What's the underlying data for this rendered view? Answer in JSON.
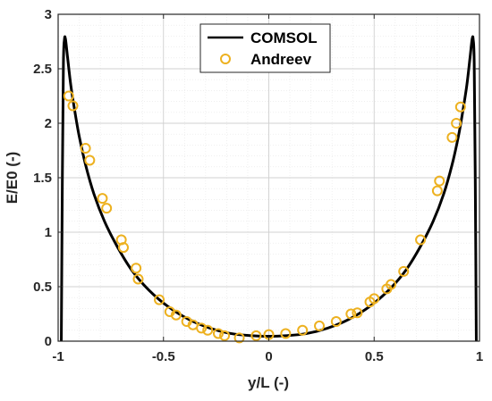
{
  "chart_data": {
    "type": "line",
    "title": "",
    "xlabel": "y/L (-)",
    "ylabel": "E/E0 (-)",
    "xlim": [
      -1,
      1
    ],
    "ylim": [
      0,
      3
    ],
    "x_ticks": [
      -1,
      -0.5,
      0,
      0.5,
      1
    ],
    "x_tick_labels": [
      "-1",
      "-0.5",
      "0",
      "0.5",
      "1"
    ],
    "y_ticks": [
      0,
      0.5,
      1,
      1.5,
      2,
      2.5,
      3
    ],
    "y_tick_labels": [
      "0",
      "0.5",
      "1",
      "1.5",
      "2",
      "2.5",
      "3"
    ],
    "x_minor_step": 0.1,
    "y_minor_step": 0.1,
    "grid": true,
    "legend_position": "top-center",
    "series": [
      {
        "name": "COMSOL",
        "kind": "line",
        "color": "#000000",
        "x": [
          -0.985,
          -0.98,
          -0.975,
          -0.97,
          -0.965,
          -0.955,
          -0.94,
          -0.92,
          -0.9,
          -0.87,
          -0.83,
          -0.78,
          -0.72,
          -0.65,
          -0.57,
          -0.48,
          -0.38,
          -0.28,
          -0.18,
          -0.08,
          0,
          0.08,
          0.18,
          0.28,
          0.38,
          0.48,
          0.57,
          0.65,
          0.72,
          0.78,
          0.83,
          0.87,
          0.9,
          0.92,
          0.94,
          0.955,
          0.965,
          0.97,
          0.975,
          0.98,
          0.985
        ],
        "y": [
          0.0,
          1.5,
          2.55,
          2.77,
          2.77,
          2.6,
          2.35,
          2.1,
          1.88,
          1.62,
          1.35,
          1.1,
          0.87,
          0.65,
          0.47,
          0.32,
          0.2,
          0.12,
          0.07,
          0.05,
          0.045,
          0.05,
          0.07,
          0.12,
          0.2,
          0.32,
          0.47,
          0.65,
          0.87,
          1.1,
          1.35,
          1.62,
          1.88,
          2.1,
          2.35,
          2.6,
          2.77,
          2.77,
          2.55,
          1.5,
          0.0
        ]
      },
      {
        "name": "Andreev",
        "kind": "marker",
        "color": "#EDB120",
        "x": [
          -0.95,
          -0.93,
          -0.87,
          -0.85,
          -0.79,
          -0.77,
          -0.7,
          -0.69,
          -0.63,
          -0.62,
          -0.52,
          -0.47,
          -0.44,
          -0.39,
          -0.36,
          -0.32,
          -0.29,
          -0.24,
          -0.21,
          -0.14,
          -0.06,
          0.0,
          0.08,
          0.16,
          0.24,
          0.32,
          0.39,
          0.42,
          0.48,
          0.5,
          0.56,
          0.58,
          0.64,
          0.72,
          0.8,
          0.81,
          0.87,
          0.89,
          0.91
        ],
        "y": [
          2.25,
          2.16,
          1.77,
          1.66,
          1.31,
          1.22,
          0.93,
          0.86,
          0.67,
          0.57,
          0.38,
          0.27,
          0.24,
          0.18,
          0.15,
          0.12,
          0.1,
          0.07,
          0.05,
          0.03,
          0.05,
          0.06,
          0.07,
          0.1,
          0.14,
          0.18,
          0.25,
          0.26,
          0.36,
          0.39,
          0.48,
          0.52,
          0.64,
          0.93,
          1.38,
          1.47,
          1.87,
          2.0,
          2.15
        ]
      }
    ]
  }
}
